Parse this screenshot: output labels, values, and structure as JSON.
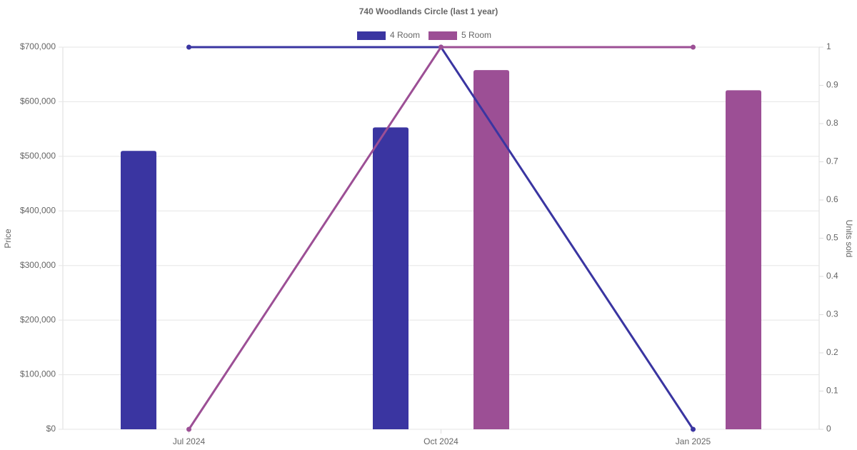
{
  "chart_data": {
    "type": "bar-line",
    "title": "740 Woodlands Circle (last 1 year)",
    "y_label": "Price",
    "y2_label": "Units sold",
    "categories": [
      "Jul 2024",
      "Oct 2024",
      "Jan 2025"
    ],
    "series": [
      {
        "name": "4 Room",
        "color": "#3a35a1",
        "values": [
          510000,
          553000,
          null
        ],
        "units": [
          1,
          1,
          0
        ]
      },
      {
        "name": "5 Room",
        "color": "#9c4f95",
        "values": [
          null,
          658000,
          621000
        ],
        "units": [
          0,
          1,
          1
        ]
      }
    ],
    "ylim": [
      0,
      700000
    ],
    "yticks": [
      {
        "value": 0,
        "label": "$0"
      },
      {
        "value": 100000,
        "label": "$100,000"
      },
      {
        "value": 200000,
        "label": "$200,000"
      },
      {
        "value": 300000,
        "label": "$300,000"
      },
      {
        "value": 400000,
        "label": "$400,000"
      },
      {
        "value": 500000,
        "label": "$500,000"
      },
      {
        "value": 600000,
        "label": "$600,000"
      },
      {
        "value": 700000,
        "label": "$700,000"
      }
    ],
    "y2lim": [
      0,
      1
    ],
    "y2ticks": [
      0,
      0.1,
      0.2,
      0.3,
      0.4,
      0.5,
      0.6,
      0.7,
      0.8,
      0.9,
      1
    ],
    "grid": true
  }
}
